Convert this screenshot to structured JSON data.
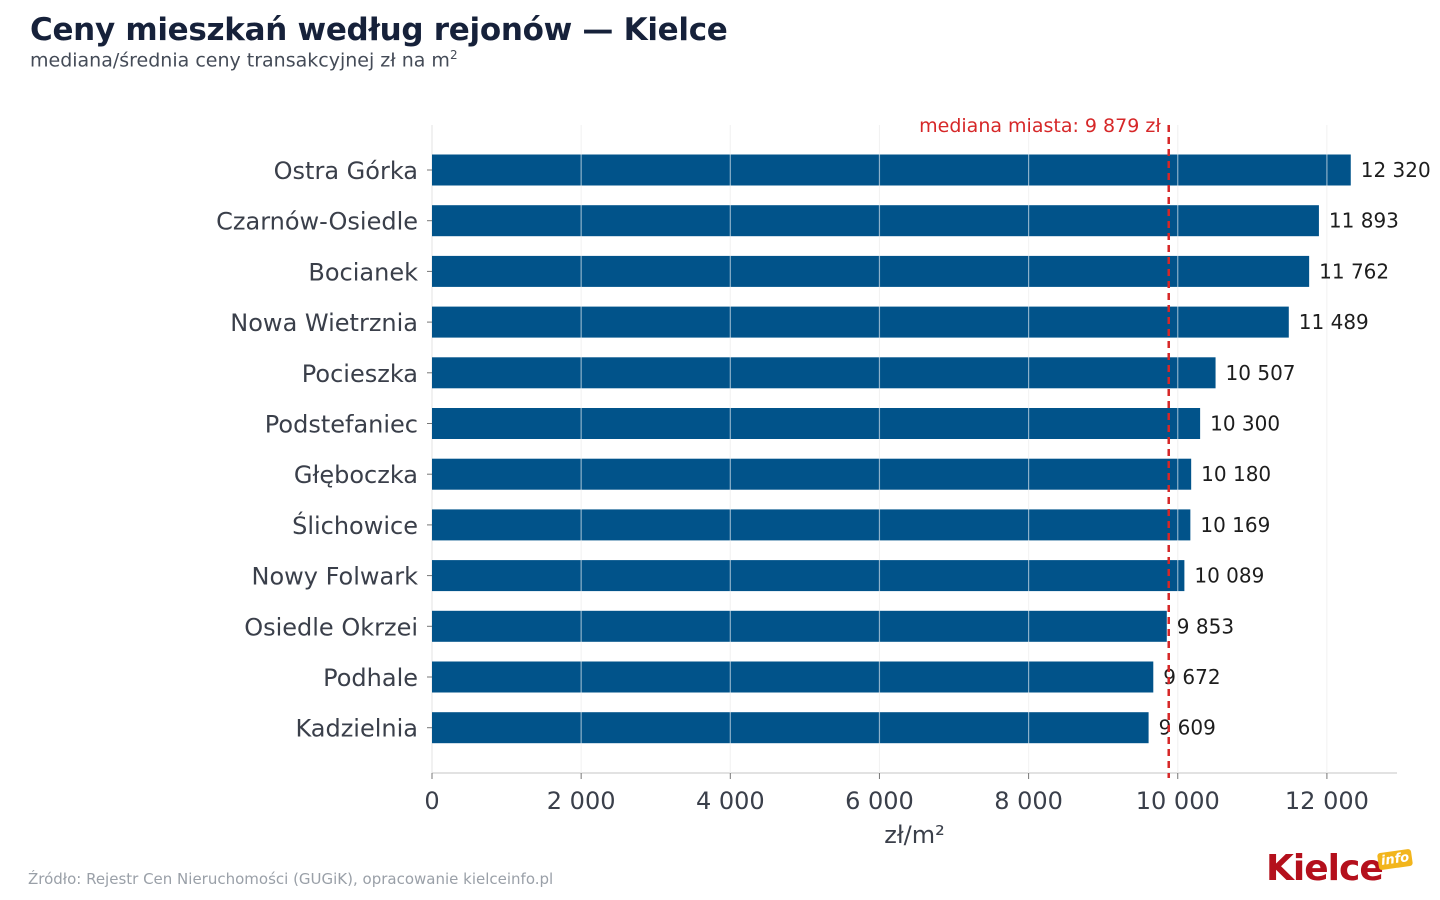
{
  "header": {
    "title": "Ceny mieszkań według rejonów — Kielce",
    "subtitle_text": "mediana/średnia ceny transakcyjnej zł na m",
    "subtitle_sup": "2"
  },
  "footer": {
    "source": "Źródło: Rejestr Cen Nieruchomości (GUGiK), opracowanie kielceinfo.pl"
  },
  "logo": {
    "main": "Kielce",
    "badge": "info"
  },
  "colors": {
    "bar": "#01538a",
    "median_line": "#d62728",
    "grid": "#e3e3e3",
    "axis_text": "#3a3f4a"
  },
  "chart_data": {
    "type": "bar",
    "orientation": "horizontal",
    "categories": [
      "Ostra Górka",
      "Czarnów-Osiedle",
      "Bocianek",
      "Nowa Wietrznia",
      "Pocieszka",
      "Podstefaniec",
      "Głęboczka",
      "Ślichowice",
      "Nowy Folwark",
      "Osiedle Okrzei",
      "Podhale",
      "Kadzielnia"
    ],
    "values": [
      12320,
      11893,
      11762,
      11489,
      10507,
      10300,
      10180,
      10169,
      10089,
      9853,
      9672,
      9609
    ],
    "value_labels": [
      "12 320",
      "11 893",
      "11 762",
      "11 489",
      "10 507",
      "10 300",
      "10 180",
      "10 169",
      "10 089",
      "9 853",
      "9 672",
      "9 609"
    ],
    "xlabel": "zł/m²",
    "xlim": [
      0,
      12940
    ],
    "xticks": [
      0,
      2000,
      4000,
      6000,
      8000,
      10000,
      12000
    ],
    "xtick_labels": [
      "0",
      "2 000",
      "4 000",
      "6 000",
      "8 000",
      "10 000",
      "12 000"
    ],
    "grid": "vertical",
    "reference_line": {
      "value": 9879,
      "label": "mediana miasta: 9 879 zł",
      "style": "dashed"
    }
  }
}
